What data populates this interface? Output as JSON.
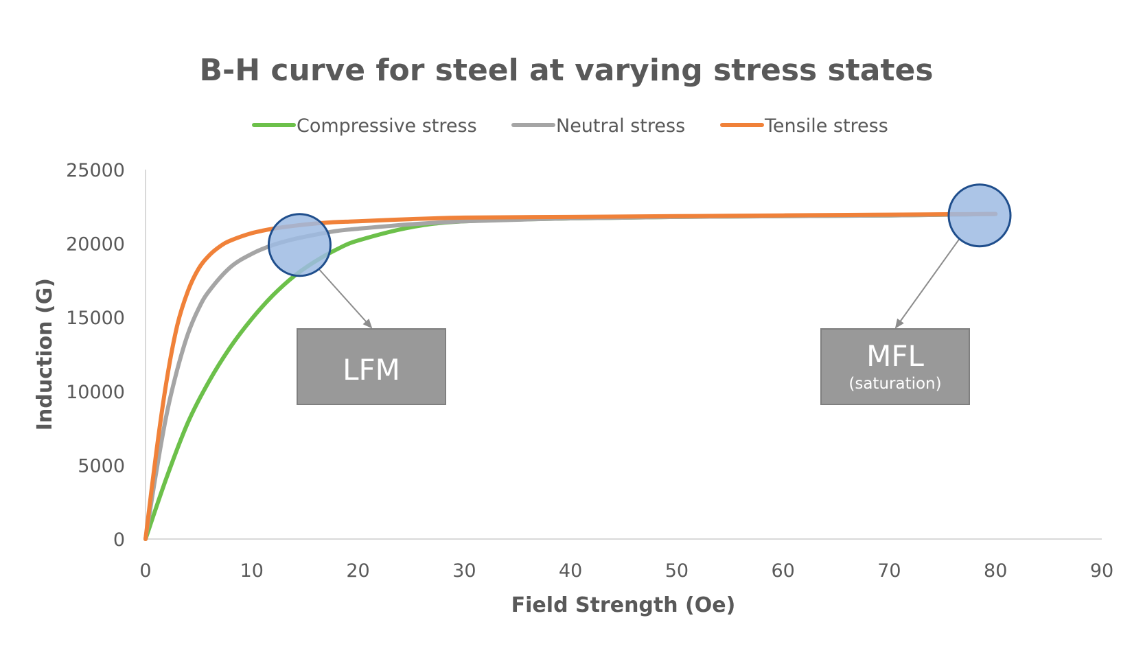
{
  "chart_data": {
    "type": "line",
    "title": "B-H curve for steel at varying stress states",
    "xlabel": "Field Strength (Oe)",
    "ylabel": "Induction (G)",
    "xlim": [
      0,
      90
    ],
    "ylim": [
      0,
      25000
    ],
    "x_ticks": [
      0,
      10,
      20,
      30,
      40,
      50,
      60,
      70,
      80,
      90
    ],
    "y_ticks": [
      0,
      5000,
      10000,
      15000,
      20000,
      25000
    ],
    "grid": false,
    "legend_position": "top",
    "series": [
      {
        "name": "Compressive stress",
        "color": "#6cc04a",
        "x": [
          0,
          2,
          4,
          6,
          8,
          10,
          12,
          14,
          16,
          18,
          20,
          25,
          30,
          40,
          50,
          60,
          70,
          80
        ],
        "y": [
          0,
          4200,
          7900,
          10700,
          13000,
          14900,
          16500,
          17800,
          18800,
          19600,
          20200,
          21100,
          21500,
          21700,
          21800,
          21850,
          21900,
          22000
        ]
      },
      {
        "name": "Neutral stress",
        "color": "#a5a5a5",
        "x": [
          0,
          1,
          2,
          3,
          4,
          5,
          6,
          8,
          10,
          12,
          14,
          16,
          18,
          20,
          25,
          30,
          40,
          50,
          60,
          70,
          80
        ],
        "y": [
          0,
          4500,
          8500,
          11500,
          13900,
          15600,
          16800,
          18400,
          19300,
          19900,
          20300,
          20600,
          20850,
          21000,
          21300,
          21500,
          21700,
          21800,
          21850,
          21900,
          22000
        ]
      },
      {
        "name": "Tensile stress",
        "color": "#f08139",
        "x": [
          0,
          1,
          2,
          3,
          4,
          5,
          6,
          7,
          8,
          10,
          12,
          14,
          16,
          18,
          20,
          25,
          30,
          40,
          50,
          60,
          70,
          80
        ],
        "y": [
          0,
          5800,
          10800,
          14500,
          16800,
          18300,
          19200,
          19800,
          20200,
          20700,
          21000,
          21200,
          21350,
          21450,
          21500,
          21650,
          21750,
          21800,
          21850,
          21900,
          21950,
          22000
        ]
      }
    ],
    "annotations": [
      {
        "label": "LFM",
        "sublabel": "",
        "circle_at": {
          "x": 14.5,
          "y": 19900
        }
      },
      {
        "label": "MFL",
        "sublabel": "(saturation)",
        "circle_at": {
          "x": 78.5,
          "y": 21900
        }
      }
    ],
    "colors": {
      "axis": "#d9d9d9",
      "text": "#595959",
      "box_fill": "#999999",
      "box_stroke": "#7f7f7f",
      "circle_fill": "#9dbbe3",
      "circle_stroke": "#1f4e8c",
      "arrow": "#8c8c8c"
    }
  }
}
